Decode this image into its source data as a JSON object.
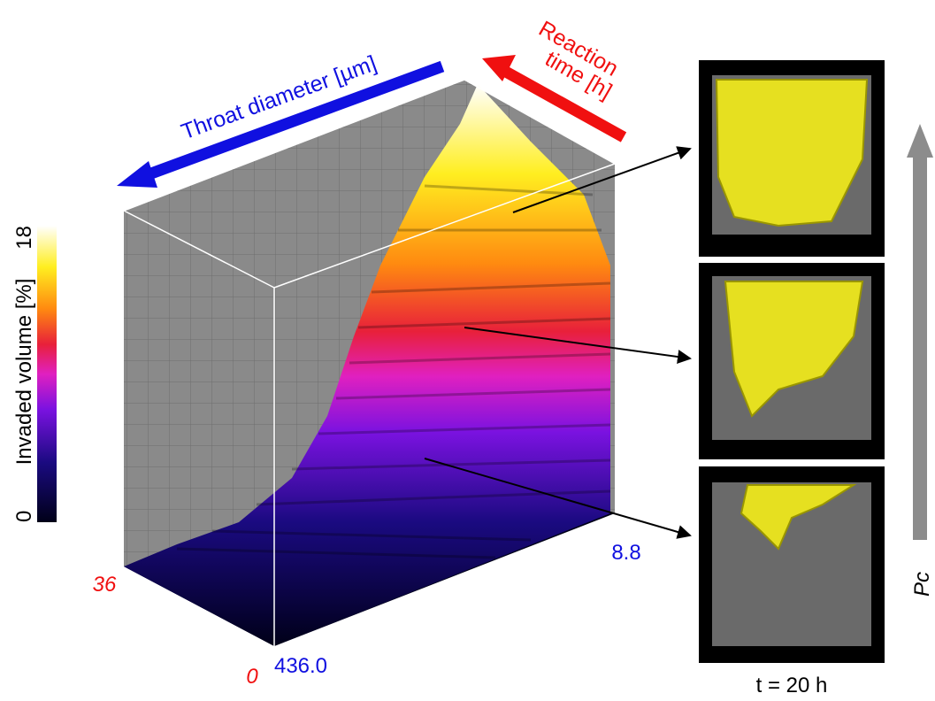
{
  "axes": {
    "throat_diameter": {
      "label": "Throat diameter [µm]",
      "start": "436.0",
      "end": "8.8"
    },
    "reaction_time": {
      "label_lines": [
        "Reaction",
        "time [h]"
      ],
      "start": "0",
      "end": "36"
    }
  },
  "colorbar": {
    "label": "Invaded volume [%]",
    "min": "0",
    "max": "18"
  },
  "panels": {
    "caption": "t = 20 h",
    "pressure_label": "Pc"
  }
}
